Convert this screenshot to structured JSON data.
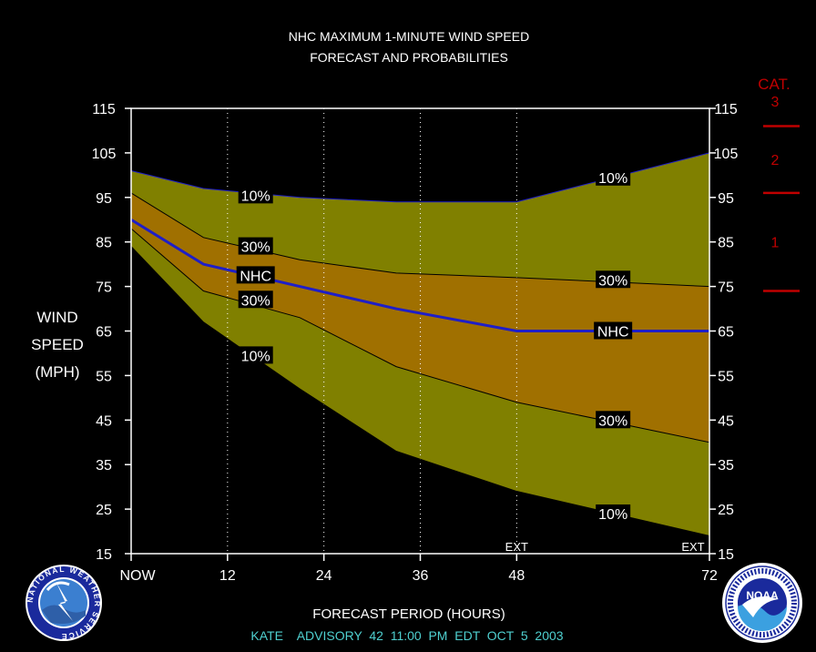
{
  "chart_data": {
    "type": "area",
    "title": "NHC MAXIMUM 1-MINUTE WIND SPEED",
    "subtitle": "FORECAST AND PROBABILITIES",
    "xlabel": "FORECAST PERIOD (HOURS)",
    "ylabel": [
      "WIND",
      "SPEED",
      "(MPH)"
    ],
    "x_ticks": [
      {
        "value": 0,
        "label": "NOW"
      },
      {
        "value": 12,
        "label": "12"
      },
      {
        "value": 24,
        "label": "24"
      },
      {
        "value": 36,
        "label": "36"
      },
      {
        "value": 48,
        "label": "48"
      },
      {
        "value": 72,
        "label": "72"
      }
    ],
    "y_ticks": [
      "115",
      "105",
      "95",
      "85",
      "75",
      "65",
      "55",
      "45",
      "35",
      "25",
      "15"
    ],
    "xlim": [
      0,
      72
    ],
    "ylim": [
      15,
      115
    ],
    "grid": "vertical dotted lines at 12, 24, 36, 48",
    "ext_labels": [
      {
        "x": 48,
        "label": "EXT"
      },
      {
        "x": 72,
        "label": "EXT"
      }
    ],
    "x": [
      0,
      9,
      21,
      33,
      48,
      72
    ],
    "series": [
      {
        "label": "10%",
        "role": "upper_10",
        "values": [
          101,
          97,
          95,
          94,
          94,
          105
        ]
      },
      {
        "label": "30%",
        "role": "upper_30",
        "values": [
          96,
          86,
          81,
          78,
          77,
          75
        ]
      },
      {
        "label": "NHC",
        "role": "forecast",
        "values": [
          90,
          80,
          75,
          70,
          65,
          65
        ]
      },
      {
        "label": "30%",
        "role": "lower_30",
        "values": [
          88,
          74,
          68,
          57,
          49,
          40
        ]
      },
      {
        "label": "10%",
        "role": "lower_10",
        "values": [
          84,
          67,
          52,
          38,
          29,
          19
        ]
      }
    ],
    "band_labels": [
      {
        "text": "10%",
        "x": 15.5,
        "y": 95.5
      },
      {
        "text": "30%",
        "x": 15.5,
        "y": 84
      },
      {
        "text": "NHC",
        "x": 15.5,
        "y": 77.5
      },
      {
        "text": "30%",
        "x": 15.5,
        "y": 72
      },
      {
        "text": "10%",
        "x": 15.5,
        "y": 59.5
      },
      {
        "text": "10%",
        "x": 60,
        "y": 99.5
      },
      {
        "text": "30%",
        "x": 60,
        "y": 76.5
      },
      {
        "text": "NHC",
        "x": 60,
        "y": 65
      },
      {
        "text": "30%",
        "x": 60,
        "y": 45
      },
      {
        "text": "10%",
        "x": 60,
        "y": 24
      }
    ],
    "category_scale": {
      "title": "CAT.",
      "categories": [
        {
          "label": "3",
          "min": 111
        },
        {
          "label": "2",
          "min": 96
        },
        {
          "label": "1",
          "min": 74
        }
      ]
    },
    "colors": {
      "outer_band": "#808000",
      "inner_band": "#A07000",
      "forecast_line": "#1E1EC8",
      "category": "#C00000",
      "footer": "#4FD0D0"
    }
  },
  "footer": "KATE    ADVISORY  42  11:00  PM  EDT  OCT  5  2003",
  "logos": {
    "nws": "NATIONAL WEATHER SERVICE",
    "noaa": "NOAA"
  }
}
